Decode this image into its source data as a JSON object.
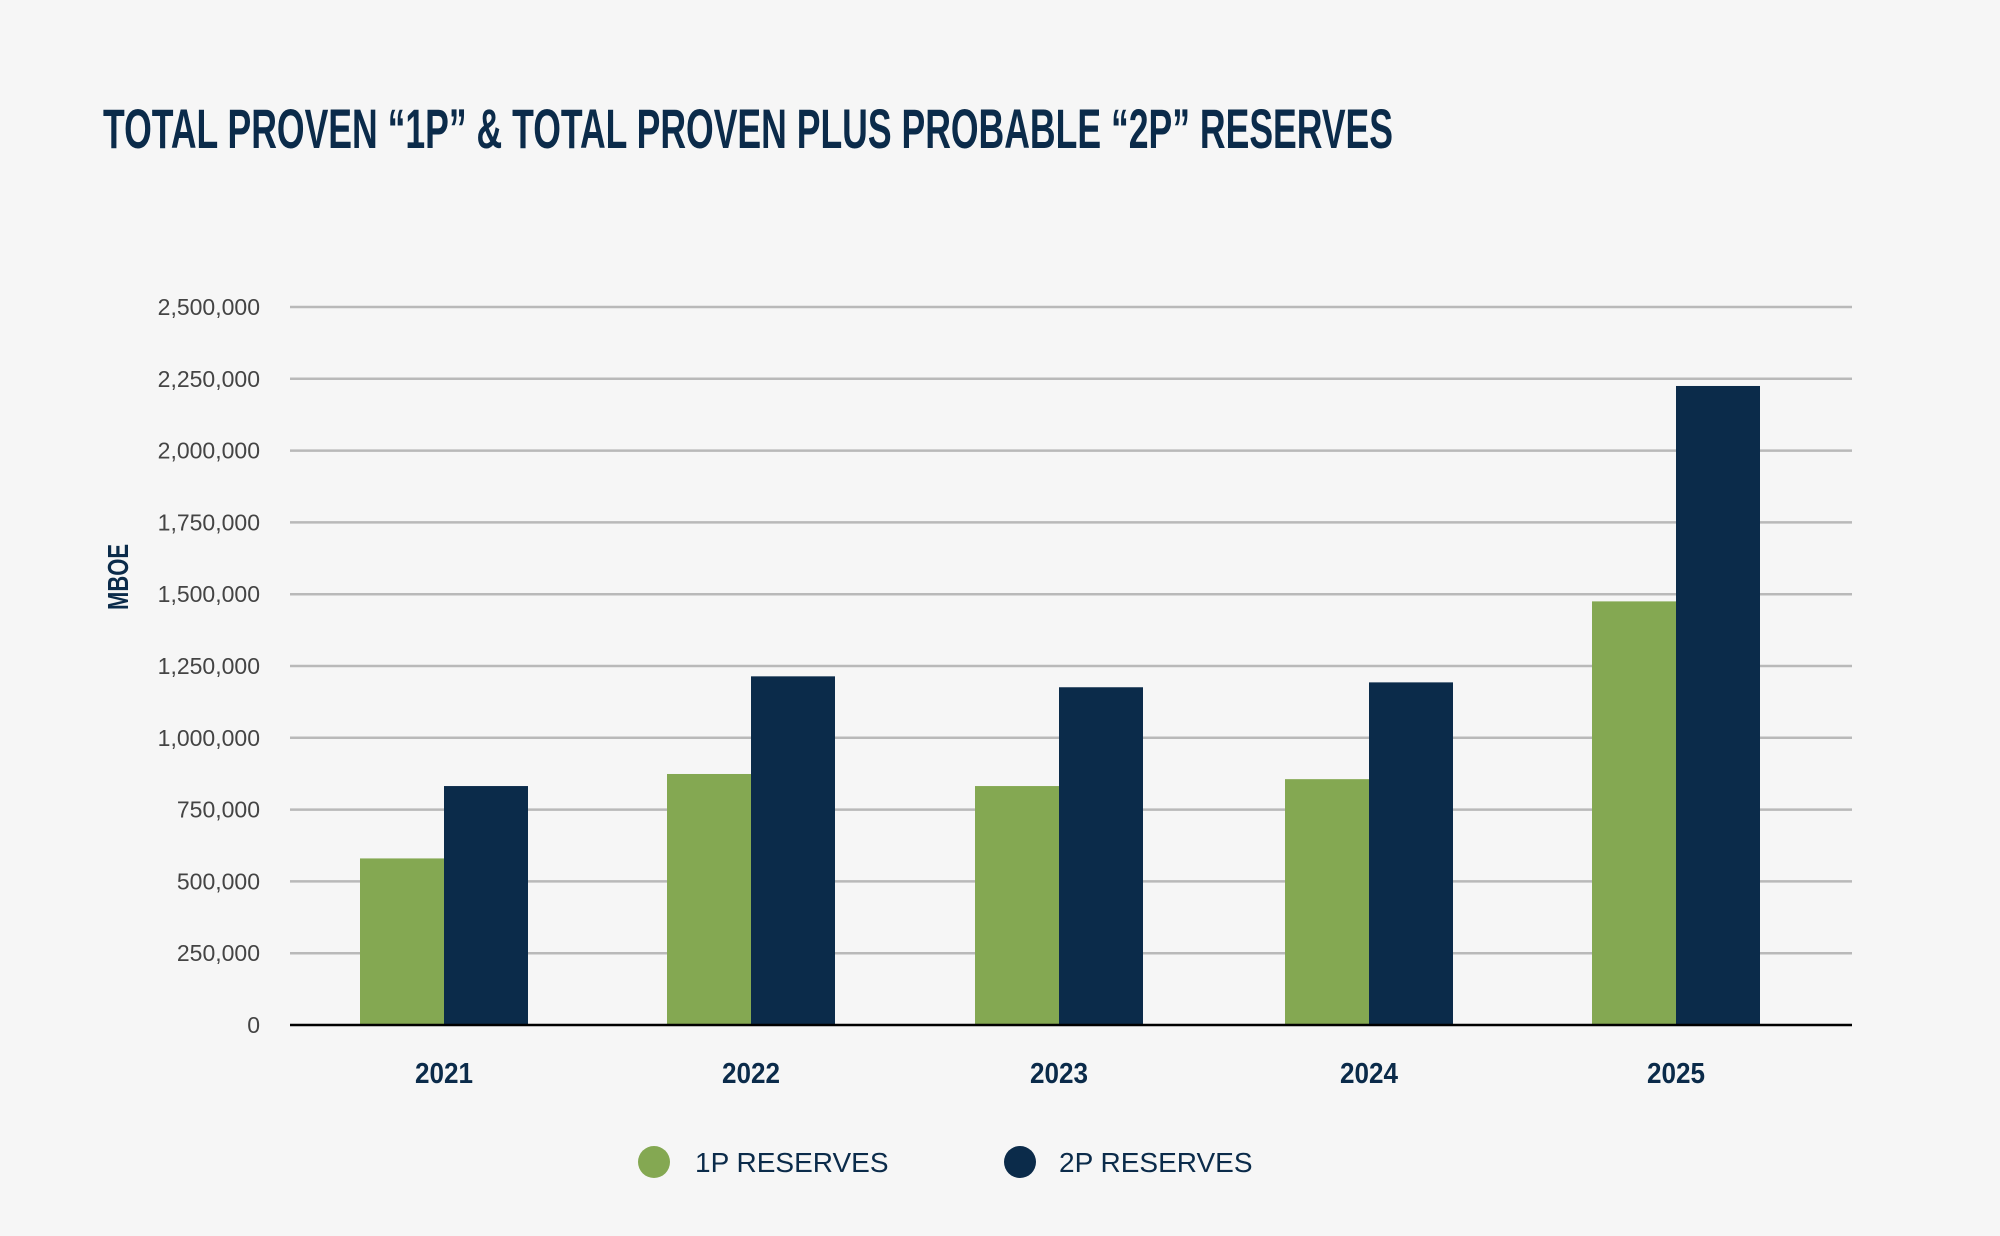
{
  "chart_data": {
    "type": "bar",
    "title": "TOTAL PROVEN “1P” & TOTAL PROVEN PLUS PROBABLE “2P” RESERVES",
    "xlabel": "",
    "ylabel": "MBOE",
    "ylim": [
      0,
      2500000
    ],
    "yticks": [
      0,
      250000,
      500000,
      750000,
      1000000,
      1250000,
      1500000,
      1750000,
      2000000,
      2250000,
      2500000
    ],
    "ytick_labels": [
      "0",
      "250,000",
      "500,000",
      "750,000",
      "1,000,000",
      "1,250,000",
      "1,500,000",
      "1,750,000",
      "2,000,000",
      "2,250,000",
      "2,500,000"
    ],
    "grid": true,
    "legend_position": "bottom",
    "categories": [
      "2021",
      "2022",
      "2023",
      "2024",
      "2025"
    ],
    "series": [
      {
        "name": "1P RESERVES",
        "color": "#84a852",
        "values": [
          580000,
          874000,
          832000,
          856000,
          1475000
        ]
      },
      {
        "name": "2P RESERVES",
        "color": "#0b2b4a",
        "values": [
          832000,
          1214000,
          1176000,
          1193000,
          2225000
        ]
      }
    ]
  },
  "colors": {
    "background": "#f6f6f6",
    "grid": "#b9b9b9",
    "axis": "#000000",
    "text": "#0b2b4a"
  }
}
